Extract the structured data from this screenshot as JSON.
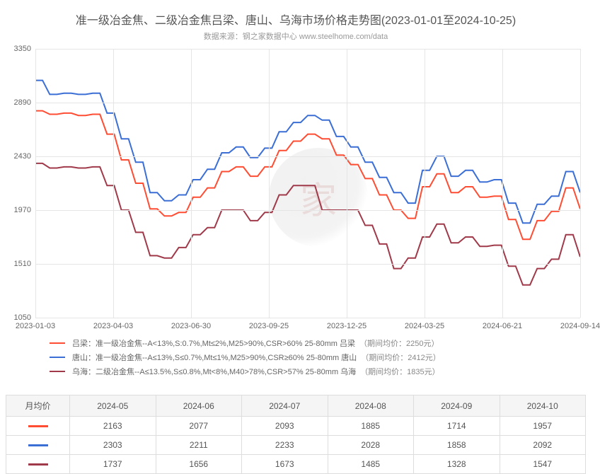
{
  "chart": {
    "type": "line-step",
    "title": "准一级冶金焦、二级冶金焦吕梁、唐山、乌海市场价格走势图(2023-01-01至2024-10-25)",
    "subtitle": "数据来源：钢之家数据中心 www.steelhome.com/data",
    "title_fontsize": 16,
    "title_color": "#555555",
    "subtitle_fontsize": 11,
    "subtitle_color": "#999999",
    "background_color": "#ffffff",
    "grid_color": "#e5e5e5",
    "axis_label_color": "#666666",
    "axis_fontsize": 11,
    "ylim": [
      1050,
      3350
    ],
    "yticks": [
      1050,
      1510,
      1970,
      2430,
      2890,
      3350
    ],
    "xticks": [
      "2023-01-03",
      "2023-04-03",
      "2023-06-30",
      "2023-09-25",
      "2023-12-25",
      "2024-03-25",
      "2024-06-21",
      "2024-09-14"
    ],
    "line_width": 2,
    "series": [
      {
        "name": "吕梁",
        "color": "#ff4d33",
        "legend_label": "吕梁：准一级冶金焦--A<13%,S:0.7%,Mt≤2%,M25>90%,CSR>60% 25-80mm 吕梁",
        "avg_label": "（期间均价：2250元）",
        "values": [
          2820,
          2820,
          2790,
          2790,
          2800,
          2800,
          2780,
          2780,
          2790,
          2790,
          2620,
          2620,
          2400,
          2400,
          2200,
          2200,
          1980,
          1980,
          1920,
          1920,
          1950,
          1950,
          2080,
          2080,
          2160,
          2160,
          2300,
          2300,
          2340,
          2340,
          2260,
          2260,
          2340,
          2340,
          2480,
          2480,
          2560,
          2560,
          2620,
          2620,
          2580,
          2580,
          2440,
          2440,
          2360,
          2360,
          2240,
          2240,
          2100,
          2100,
          1970,
          1970,
          1900,
          1900,
          2170,
          2170,
          2280,
          2280,
          2120,
          2120,
          2170,
          2170,
          2080,
          2080,
          2090,
          2090,
          1890,
          1890,
          1720,
          1720,
          1880,
          1880,
          1960,
          1960,
          2160,
          2160,
          1980
        ]
      },
      {
        "name": "唐山",
        "color": "#3b6fd6",
        "legend_label": "唐山：准一级冶金焦--A≤13%,S≤0.7%,Mt≤1%,M25>90%,CSR≥60% 25-80mm 唐山",
        "avg_label": "（期间均价：2412元）",
        "values": [
          3080,
          3080,
          2960,
          2960,
          2970,
          2970,
          2960,
          2960,
          2970,
          2970,
          2800,
          2800,
          2580,
          2580,
          2380,
          2380,
          2120,
          2120,
          2050,
          2050,
          2100,
          2100,
          2230,
          2230,
          2320,
          2320,
          2460,
          2460,
          2510,
          2510,
          2420,
          2420,
          2500,
          2500,
          2640,
          2640,
          2720,
          2720,
          2780,
          2780,
          2740,
          2740,
          2600,
          2600,
          2510,
          2510,
          2380,
          2380,
          2250,
          2250,
          2120,
          2120,
          2030,
          2030,
          2310,
          2310,
          2430,
          2430,
          2260,
          2260,
          2310,
          2310,
          2210,
          2210,
          2230,
          2230,
          2030,
          2030,
          1860,
          1860,
          2020,
          2020,
          2090,
          2090,
          2300,
          2300,
          2120
        ]
      },
      {
        "name": "乌海",
        "color": "#a03a4a",
        "legend_label": "乌海：二级冶金焦--A≤13.5%,S≤0.8%,Mt<8%,M40>78%,CSR>57% 25-80mm 乌海",
        "avg_label": "（期间均价：1835元）",
        "values": [
          2370,
          2370,
          2330,
          2330,
          2340,
          2340,
          2330,
          2330,
          2340,
          2340,
          2180,
          2180,
          1970,
          1970,
          1780,
          1780,
          1580,
          1580,
          1560,
          1560,
          1650,
          1650,
          1760,
          1760,
          1820,
          1820,
          1970,
          1970,
          1970,
          1970,
          1880,
          1880,
          1950,
          1950,
          2100,
          2100,
          2180,
          2180,
          2180,
          2180,
          1970,
          1970,
          1970,
          1970,
          1970,
          1970,
          1840,
          1840,
          1680,
          1680,
          1470,
          1470,
          1560,
          1560,
          1740,
          1740,
          1850,
          1850,
          1690,
          1690,
          1740,
          1740,
          1660,
          1660,
          1670,
          1670,
          1490,
          1490,
          1330,
          1330,
          1470,
          1470,
          1550,
          1550,
          1760,
          1760,
          1570
        ]
      }
    ]
  },
  "table": {
    "header_label": "月均价",
    "columns": [
      "2024-05",
      "2024-06",
      "2024-07",
      "2024-08",
      "2024-09",
      "2024-10"
    ],
    "row_colors": [
      "#ff4d33",
      "#3b6fd6",
      "#a03a4a"
    ],
    "rows": [
      [
        2163,
        2077,
        2093,
        1885,
        1714,
        1957
      ],
      [
        2303,
        2211,
        2233,
        2028,
        1858,
        2092
      ],
      [
        1737,
        1656,
        1673,
        1485,
        1328,
        1547
      ]
    ],
    "border_color": "#dddddd",
    "header_bg": "#f5f5f5",
    "fontsize": 12,
    "text_color": "#555555"
  }
}
